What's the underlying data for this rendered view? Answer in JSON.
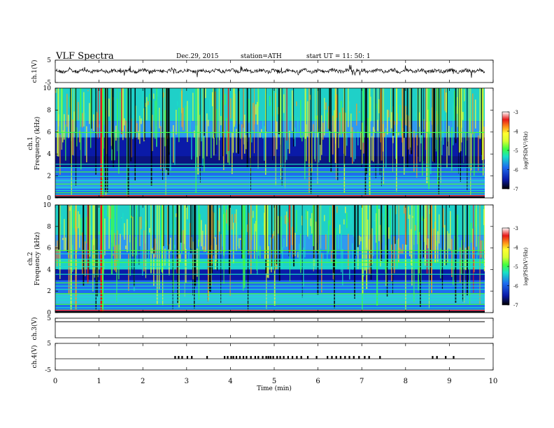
{
  "header": {
    "title": "VLF  Spectra",
    "date": "Dec.29, 2015",
    "station": "station=ATH",
    "start": "start  UT  =    11: 50: 1"
  },
  "colors": {
    "colormap": [
      "#000000",
      "#0a1aa8",
      "#1e6cf0",
      "#18e0c8",
      "#40ff40",
      "#d8ff30",
      "#ffff30",
      "#ff9a18",
      "#e81818",
      "#ffffff"
    ]
  },
  "chart_data": [
    {
      "type": "line",
      "panel": "ch.1",
      "ylabel": "ch.1(V)",
      "ylim": [
        -5,
        5
      ],
      "yticks": [
        "5",
        "-5"
      ],
      "description_values": {
        "mean": 0,
        "spread": 0.6
      }
    },
    {
      "type": "heatmap",
      "panel": "ch.1",
      "ylabel": "ch.1\nFrequency  (kHz)",
      "ylim": [
        0,
        10
      ],
      "yticks": [
        "0",
        "2",
        "4",
        "6",
        "8",
        "10"
      ],
      "colorbar": {
        "label": "log(PSD(V²/Hz)",
        "range": [
          -7,
          -3
        ],
        "ticks": [
          "-3",
          "-4",
          "-5",
          "-6",
          "-7"
        ]
      }
    },
    {
      "type": "heatmap",
      "panel": "ch.2",
      "ylabel": "ch.2\nFrequency  (kHz)",
      "ylim": [
        0,
        10
      ],
      "yticks": [
        "0",
        "2",
        "4",
        "6",
        "8",
        "10"
      ],
      "colorbar": {
        "label": "log(PSD(V²/Hz)",
        "range": [
          -7,
          -3
        ],
        "ticks": [
          "-3",
          "-4",
          "-5",
          "-6",
          "-7"
        ]
      }
    },
    {
      "type": "line",
      "panel": "ch.3",
      "ylabel": "ch.3(V)",
      "ylim": [
        -5,
        5
      ],
      "yticks": [
        "5"
      ]
    },
    {
      "type": "line",
      "panel": "ch.4",
      "ylabel": "ch.4(V)",
      "ylim": [
        -5,
        5
      ],
      "yticks": [
        "5",
        "-5"
      ],
      "pulse_times_min": [
        2.72,
        2.8,
        2.88,
        3.0,
        3.1,
        3.45,
        3.85,
        3.92,
        4.0,
        4.05,
        4.12,
        4.2,
        4.28,
        4.35,
        4.45,
        4.55,
        4.62,
        4.72,
        4.8,
        4.85,
        4.9,
        4.96,
        5.05,
        5.12,
        5.2,
        5.3,
        5.4,
        5.5,
        5.6,
        5.75,
        5.95,
        6.2,
        6.3,
        6.4,
        6.5,
        6.6,
        6.7,
        6.8,
        6.92,
        7.05,
        7.15,
        7.4,
        8.6,
        8.7,
        8.9,
        9.08
      ]
    },
    {
      "type": "axis",
      "xlabel": "Time  (min)",
      "xlim": [
        0,
        10
      ],
      "xticks": [
        "0",
        "1",
        "2",
        "3",
        "4",
        "5",
        "6",
        "7",
        "8",
        "9",
        "10"
      ]
    }
  ]
}
